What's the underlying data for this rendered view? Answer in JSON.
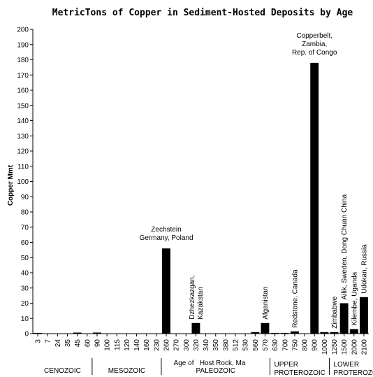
{
  "chart_data": {
    "type": "bar",
    "title": "MetricTons of Copper in Sediment-Hosted Deposits by Age",
    "x_label": "Age of   Host Rock, Ma",
    "y_label": "Copper  Mmt",
    "categories": [
      "3",
      "7",
      "24",
      "35",
      "45",
      "60",
      "90",
      "100",
      "115",
      "120",
      "140",
      "160",
      "230",
      "260",
      "270",
      "300",
      "320",
      "340",
      "350",
      "380",
      "512",
      "530",
      "560",
      "570",
      "630",
      "700",
      "750",
      "800",
      "900",
      "1000",
      "1250",
      "1500",
      "2000",
      "2100"
    ],
    "values": [
      0.5,
      0,
      0,
      0,
      0.7,
      0,
      0.7,
      0,
      0,
      0,
      0,
      0,
      0,
      56,
      0,
      0,
      7,
      0,
      0,
      0,
      0,
      0,
      1,
      7,
      0.5,
      0.5,
      1.5,
      0,
      178,
      1,
      1,
      20,
      3,
      24
    ],
    "color": "#000000",
    "ylim": [
      0,
      200
    ],
    "yticks": [
      0,
      10,
      20,
      30,
      40,
      50,
      60,
      70,
      80,
      90,
      100,
      110,
      120,
      130,
      140,
      150,
      160,
      170,
      180,
      190,
      200
    ],
    "eras": [
      [
        "CENOZOIC"
      ],
      [
        "MESOZOIC"
      ],
      [
        "PALEOZOIC"
      ],
      [
        "UPPER",
        "PROTEROZOIC"
      ],
      [
        "LOWER",
        "PROTEROZOIC"
      ]
    ],
    "annotations": [
      {
        "at": "260",
        "rotated": false,
        "lines": [
          "Zechstein",
          "Germany, Poland"
        ]
      },
      {
        "at": "320",
        "rotated": true,
        "lines": [
          "Dzhezkazgan,",
          "Kazakstan"
        ]
      },
      {
        "at": "570",
        "rotated": true,
        "lines": [
          "Afganistan"
        ]
      },
      {
        "at": "750",
        "rotated": true,
        "lines": [
          "Redstone, Canada"
        ]
      },
      {
        "at": "900",
        "rotated": false,
        "lines": [
          "Copperbelt,",
          "Zambia,",
          "Rep. of Congo"
        ]
      },
      {
        "at": "1250",
        "rotated": true,
        "lines": [
          "Zimbabwe"
        ]
      },
      {
        "at": "1500",
        "rotated": true,
        "lines": [
          "Ailik, Sweden, Dong Chuan China"
        ]
      },
      {
        "at": "2000",
        "rotated": true,
        "lines": [
          "Kilembe, Uganda"
        ]
      },
      {
        "at": "2100",
        "rotated": true,
        "lines": [
          "Udokan, Russia"
        ]
      }
    ]
  }
}
